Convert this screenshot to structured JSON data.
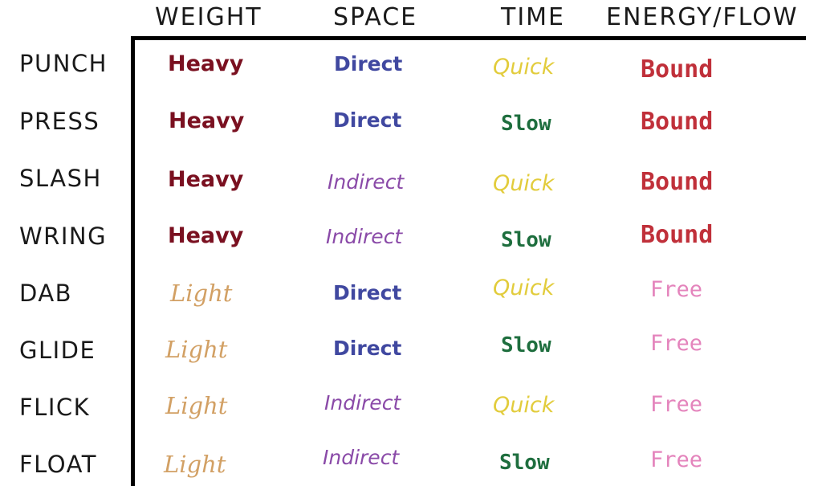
{
  "headers": [
    "WEIGHT",
    "SPACE",
    "TIME",
    "ENERGY/FLOW"
  ],
  "rows": [
    {
      "label": "PUNCH",
      "weight": "Heavy",
      "space": "Direct",
      "time": "Quick",
      "flow": "Bound"
    },
    {
      "label": "PRESS",
      "weight": "Heavy",
      "space": "Direct",
      "time": "Slow",
      "flow": "Bound"
    },
    {
      "label": "SLASH",
      "weight": "Heavy",
      "space": "Indirect",
      "time": "Quick",
      "flow": "Bound"
    },
    {
      "label": "WRING",
      "weight": "Heavy",
      "space": "Indirect",
      "time": "Slow",
      "flow": "Bound"
    },
    {
      "label": "DAB",
      "weight": "Light",
      "space": "Direct",
      "time": "Quick",
      "flow": "Free"
    },
    {
      "label": "GLIDE",
      "weight": "Light",
      "space": "Direct",
      "time": "Slow",
      "flow": "Free"
    },
    {
      "label": "FLICK",
      "weight": "Light",
      "space": "Indirect",
      "time": "Quick",
      "flow": "Free"
    },
    {
      "label": "FLOAT",
      "weight": "Light",
      "space": "Indirect",
      "time": "Slow",
      "flow": "Free"
    }
  ],
  "colors": {
    "heavy": "#7a1020",
    "light": "#d2a064",
    "direct": "#4048a0",
    "indirect": "#8a4aa8",
    "quick": "#e2cc3c",
    "slow": "#1e6e3e",
    "bound": "#c0303a",
    "free": "#e484bc"
  }
}
